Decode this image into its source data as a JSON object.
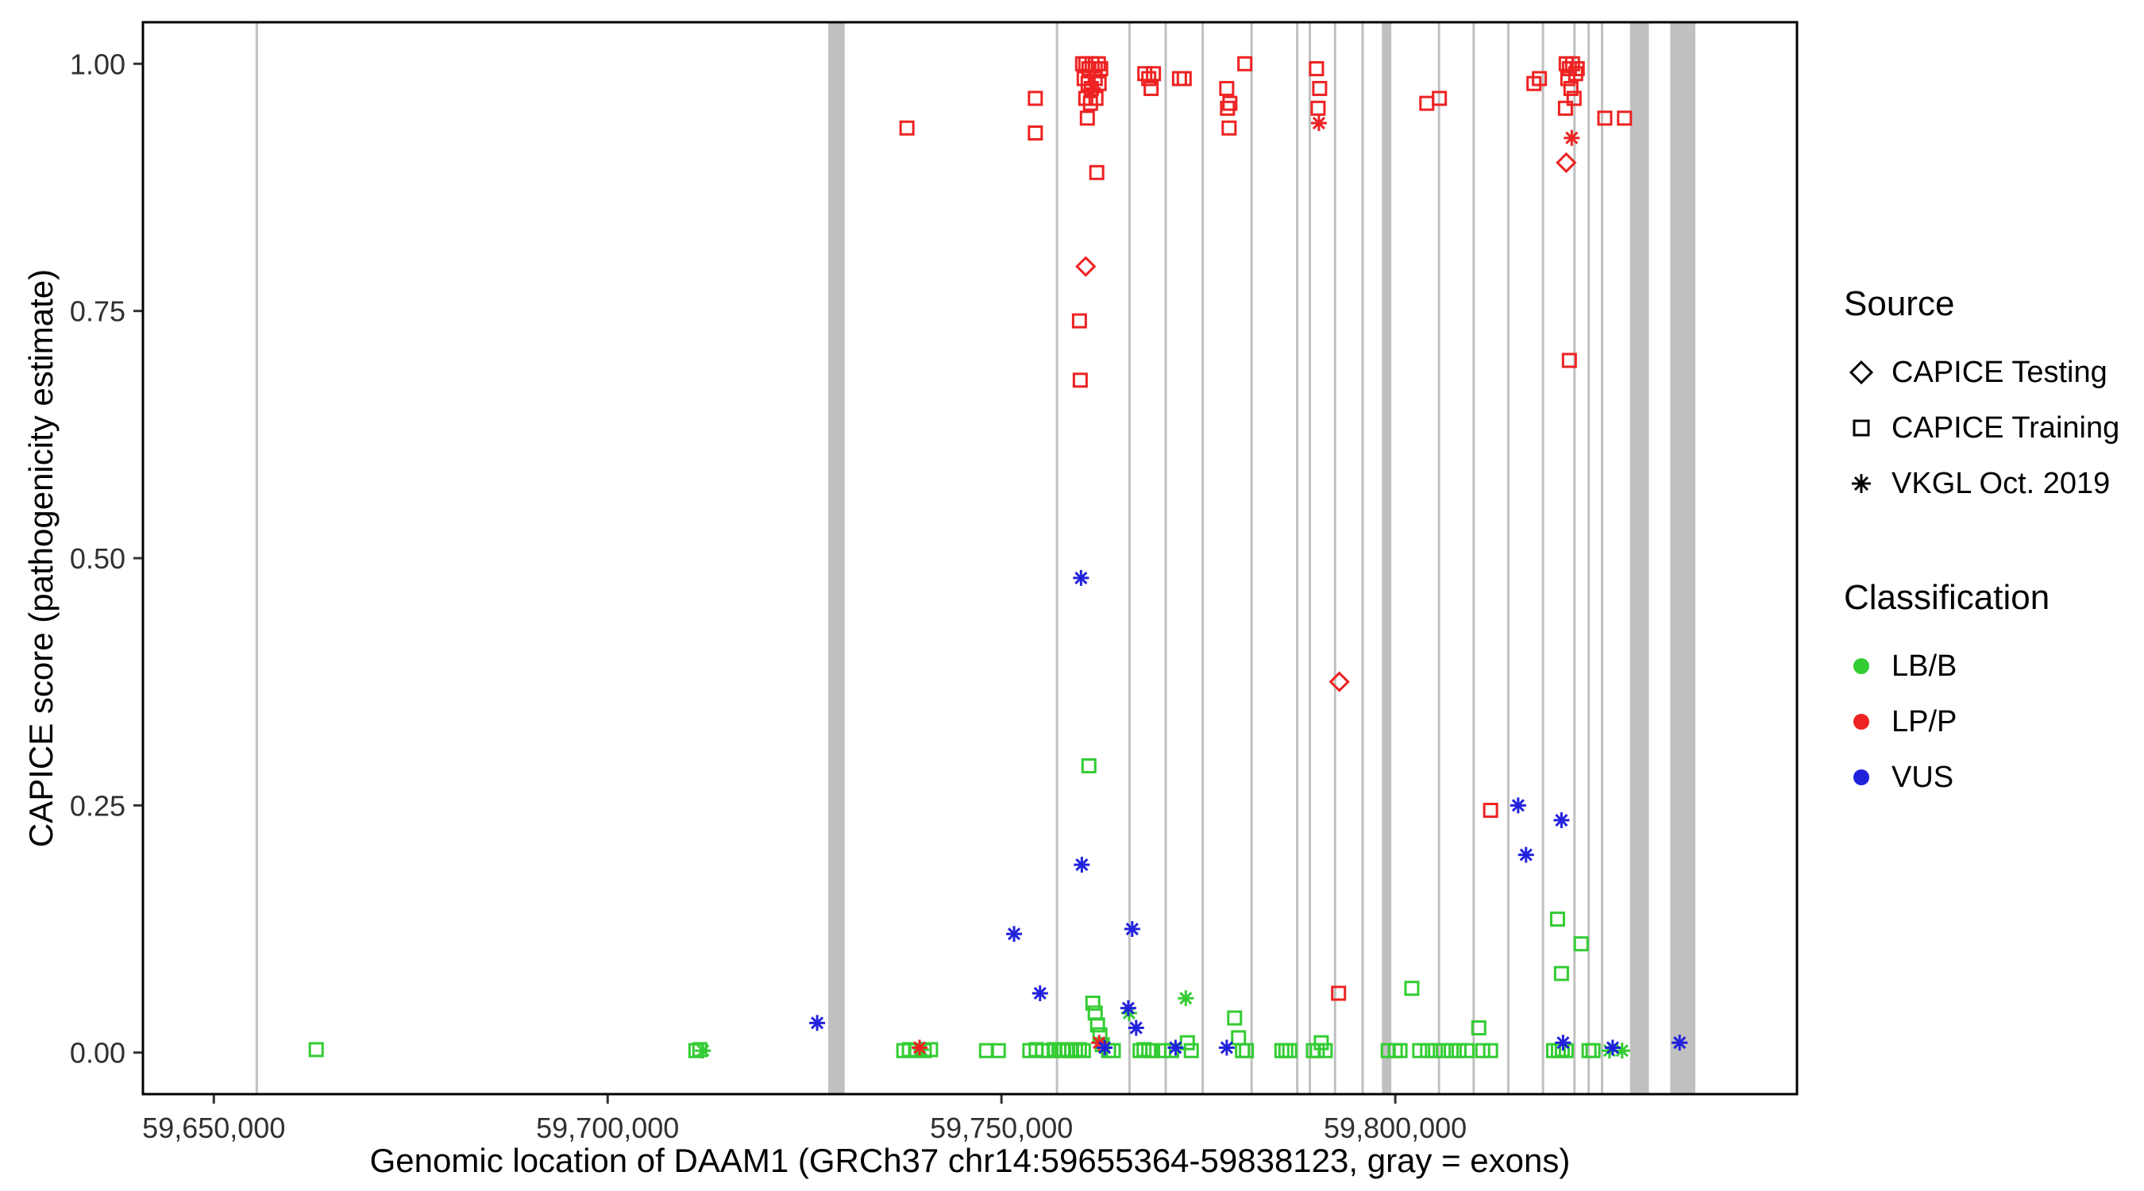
{
  "chart_data": {
    "type": "scatter",
    "title": "",
    "xlabel": "Genomic location of DAAM1 (GRCh37 chr14:59655364-59838123, gray = exons)",
    "ylabel": "CAPICE score (pathogenicity estimate)",
    "xlim": [
      59641000,
      59851000
    ],
    "ylim": [
      -0.042,
      1.042
    ],
    "grid": "off",
    "legend_position": "right",
    "x_ticks": [
      {
        "value": 59650000,
        "label": "59,650,000"
      },
      {
        "value": 59700000,
        "label": "59,700,000"
      },
      {
        "value": 59750000,
        "label": "59,750,000"
      },
      {
        "value": 59800000,
        "label": "59,800,000"
      }
    ],
    "y_ticks": [
      {
        "value": 0.0,
        "label": "0.00"
      },
      {
        "value": 0.25,
        "label": "0.25"
      },
      {
        "value": 0.5,
        "label": "0.50"
      },
      {
        "value": 0.75,
        "label": "0.75"
      },
      {
        "value": 1.0,
        "label": "1.00"
      }
    ],
    "axis": {
      "tick_color": "#333333",
      "text_color": "#303030",
      "border_color": "#000000"
    },
    "exon_color": "#c0c0c0",
    "exons": [
      [
        59655300,
        59655600
      ],
      [
        59728000,
        59730100
      ],
      [
        59756900,
        59757200
      ],
      [
        59766100,
        59766400
      ],
      [
        59770700,
        59771000
      ],
      [
        59775400,
        59775700
      ],
      [
        59781600,
        59781900
      ],
      [
        59787400,
        59787700
      ],
      [
        59789000,
        59789300
      ],
      [
        59792200,
        59792500
      ],
      [
        59795700,
        59796000
      ],
      [
        59798300,
        59799500
      ],
      [
        59805400,
        59805700
      ],
      [
        59809800,
        59810100
      ],
      [
        59814200,
        59814500
      ],
      [
        59818600,
        59818900
      ],
      [
        59822600,
        59822900
      ],
      [
        59824400,
        59824700
      ],
      [
        59826100,
        59826400
      ],
      [
        59829800,
        59832200
      ],
      [
        59834900,
        59838100
      ]
    ],
    "series": [
      {
        "name": "CAPICE Training - LB/B",
        "source": "CAPICE Training",
        "classification": "LB/B",
        "marker": "square",
        "color": "#33cc33",
        "points": [
          [
            59663000,
            0.003
          ],
          [
            59711200,
            0.002
          ],
          [
            59711700,
            0.003
          ],
          [
            59737600,
            0.002
          ],
          [
            59738300,
            0.003
          ],
          [
            59739100,
            0.002
          ],
          [
            59740200,
            0.002
          ],
          [
            59741000,
            0.003
          ],
          [
            59748100,
            0.002
          ],
          [
            59749600,
            0.002
          ],
          [
            59753600,
            0.002
          ],
          [
            59754400,
            0.003
          ],
          [
            59755200,
            0.002
          ],
          [
            59756000,
            0.002
          ],
          [
            59756700,
            0.003
          ],
          [
            59757300,
            0.002
          ],
          [
            59757900,
            0.002
          ],
          [
            59758400,
            0.003
          ],
          [
            59758900,
            0.002
          ],
          [
            59759400,
            0.002
          ],
          [
            59759900,
            0.003
          ],
          [
            59760400,
            0.002
          ],
          [
            59761100,
            0.29
          ],
          [
            59761600,
            0.05
          ],
          [
            59761900,
            0.04
          ],
          [
            59762200,
            0.028
          ],
          [
            59762500,
            0.018
          ],
          [
            59762800,
            0.008
          ],
          [
            59763600,
            0.002
          ],
          [
            59764200,
            0.002
          ],
          [
            59767600,
            0.002
          ],
          [
            59768100,
            0.003
          ],
          [
            59768700,
            0.002
          ],
          [
            59769200,
            0.002
          ],
          [
            59770600,
            0.002
          ],
          [
            59771600,
            0.002
          ],
          [
            59773600,
            0.01
          ],
          [
            59774100,
            0.002
          ],
          [
            59779600,
            0.035
          ],
          [
            59780100,
            0.015
          ],
          [
            59780600,
            0.002
          ],
          [
            59781100,
            0.002
          ],
          [
            59785600,
            0.002
          ],
          [
            59786100,
            0.002
          ],
          [
            59786600,
            0.002
          ],
          [
            59789600,
            0.002
          ],
          [
            59790100,
            0.002
          ],
          [
            59790600,
            0.01
          ],
          [
            59791100,
            0.002
          ],
          [
            59799100,
            0.002
          ],
          [
            59800000,
            0.002
          ],
          [
            59800600,
            0.002
          ],
          [
            59802100,
            0.065
          ],
          [
            59803100,
            0.002
          ],
          [
            59804100,
            0.002
          ],
          [
            59805100,
            0.002
          ],
          [
            59806100,
            0.002
          ],
          [
            59807100,
            0.002
          ],
          [
            59808100,
            0.002
          ],
          [
            59809100,
            0.002
          ],
          [
            59810600,
            0.025
          ],
          [
            59811100,
            0.002
          ],
          [
            59812100,
            0.002
          ],
          [
            59820600,
            0.135
          ],
          [
            59821100,
            0.08
          ],
          [
            59823600,
            0.11
          ],
          [
            59820100,
            0.002
          ],
          [
            59820700,
            0.002
          ],
          [
            59821200,
            0.003
          ],
          [
            59821700,
            0.002
          ],
          [
            59824600,
            0.002
          ],
          [
            59825100,
            0.002
          ]
        ]
      },
      {
        "name": "VKGL Oct. 2019 - LB/B",
        "source": "VKGL Oct. 2019",
        "classification": "LB/B",
        "marker": "asterisk",
        "color": "#33cc33",
        "points": [
          [
            59712100,
            0.002
          ],
          [
            59739800,
            0.003
          ],
          [
            59766200,
            0.04
          ],
          [
            59773400,
            0.055
          ],
          [
            59827200,
            0.002
          ],
          [
            59828800,
            0.002
          ]
        ]
      },
      {
        "name": "CAPICE Training - LP/P",
        "source": "CAPICE Training",
        "classification": "LP/P",
        "marker": "square",
        "color": "#ee2222",
        "points": [
          [
            59738000,
            0.935
          ],
          [
            59754300,
            0.965
          ],
          [
            59754300,
            0.93
          ],
          [
            59760300,
            1.0
          ],
          [
            59760700,
            1.0
          ],
          [
            59761100,
            0.995
          ],
          [
            59761500,
            1.0
          ],
          [
            59761900,
            0.995
          ],
          [
            59762300,
            1.0
          ],
          [
            59760500,
            0.985
          ],
          [
            59761000,
            0.98
          ],
          [
            59761400,
            0.975
          ],
          [
            59761900,
            0.985
          ],
          [
            59762400,
            0.98
          ],
          [
            59760700,
            0.965
          ],
          [
            59761300,
            0.96
          ],
          [
            59762000,
            0.965
          ],
          [
            59762600,
            0.995
          ],
          [
            59760900,
            0.945
          ],
          [
            59762100,
            0.89
          ],
          [
            59759900,
            0.74
          ],
          [
            59760000,
            0.68
          ],
          [
            59768200,
            0.99
          ],
          [
            59768700,
            0.985
          ],
          [
            59769300,
            0.99
          ],
          [
            59769000,
            0.975
          ],
          [
            59772600,
            0.985
          ],
          [
            59773200,
            0.985
          ],
          [
            59778600,
            0.975
          ],
          [
            59779000,
            0.96
          ],
          [
            59778700,
            0.955
          ],
          [
            59780900,
            1.0
          ],
          [
            59778900,
            0.935
          ],
          [
            59790000,
            0.995
          ],
          [
            59790400,
            0.975
          ],
          [
            59790200,
            0.955
          ],
          [
            59792800,
            0.06
          ],
          [
            59804000,
            0.96
          ],
          [
            59805600,
            0.965
          ],
          [
            59812100,
            0.245
          ],
          [
            59817600,
            0.98
          ],
          [
            59818300,
            0.985
          ],
          [
            59821700,
            1.0
          ],
          [
            59822100,
            0.995
          ],
          [
            59822500,
            1.0
          ],
          [
            59822900,
            0.99
          ],
          [
            59821900,
            0.985
          ],
          [
            59822300,
            0.975
          ],
          [
            59822700,
            0.965
          ],
          [
            59821600,
            0.955
          ],
          [
            59823100,
            0.995
          ],
          [
            59822100,
            0.7
          ],
          [
            59826600,
            0.945
          ],
          [
            59829100,
            0.945
          ]
        ]
      },
      {
        "name": "CAPICE Testing - LP/P",
        "source": "CAPICE Testing",
        "classification": "LP/P",
        "marker": "diamond",
        "color": "#ee2222",
        "points": [
          [
            59760700,
            0.795
          ],
          [
            59792900,
            0.375
          ],
          [
            59821700,
            0.9
          ]
        ]
      },
      {
        "name": "VKGL Oct. 2019 - LP/P",
        "source": "VKGL Oct. 2019",
        "classification": "LP/P",
        "marker": "asterisk",
        "color": "#ee2222",
        "points": [
          [
            59739600,
            0.005
          ],
          [
            59761600,
            0.975
          ],
          [
            59762400,
            0.01
          ],
          [
            59790300,
            0.94
          ],
          [
            59822400,
            0.925
          ]
        ]
      },
      {
        "name": "VKGL Oct. 2019 - VUS",
        "source": "VKGL Oct. 2019",
        "classification": "VUS",
        "marker": "asterisk",
        "color": "#2222dd",
        "points": [
          [
            59726600,
            0.03
          ],
          [
            59751600,
            0.12
          ],
          [
            59754900,
            0.06
          ],
          [
            59760100,
            0.48
          ],
          [
            59760200,
            0.19
          ],
          [
            59763100,
            0.005
          ],
          [
            59766600,
            0.125
          ],
          [
            59766100,
            0.045
          ],
          [
            59767100,
            0.025
          ],
          [
            59772100,
            0.005
          ],
          [
            59778600,
            0.005
          ],
          [
            59815600,
            0.25
          ],
          [
            59816600,
            0.2
          ],
          [
            59821100,
            0.235
          ],
          [
            59821300,
            0.01
          ],
          [
            59827600,
            0.005
          ],
          [
            59836100,
            0.01
          ]
        ]
      }
    ]
  },
  "axis_titles": {
    "x": "Genomic location of DAAM1 (GRCh37 chr14:59655364-59838123, gray = exons)",
    "y": "CAPICE score (pathogenicity estimate)"
  },
  "legend": {
    "source": {
      "title": "Source",
      "items": [
        {
          "label": "CAPICE Testing",
          "marker": "diamond"
        },
        {
          "label": "CAPICE Training",
          "marker": "square"
        },
        {
          "label": "VKGL Oct. 2019",
          "marker": "asterisk"
        }
      ]
    },
    "classification": {
      "title": "Classification",
      "items": [
        {
          "label": "LB/B",
          "color": "#33cc33"
        },
        {
          "label": "LP/P",
          "color": "#ee2222"
        },
        {
          "label": "VUS",
          "color": "#2222dd"
        }
      ]
    }
  }
}
